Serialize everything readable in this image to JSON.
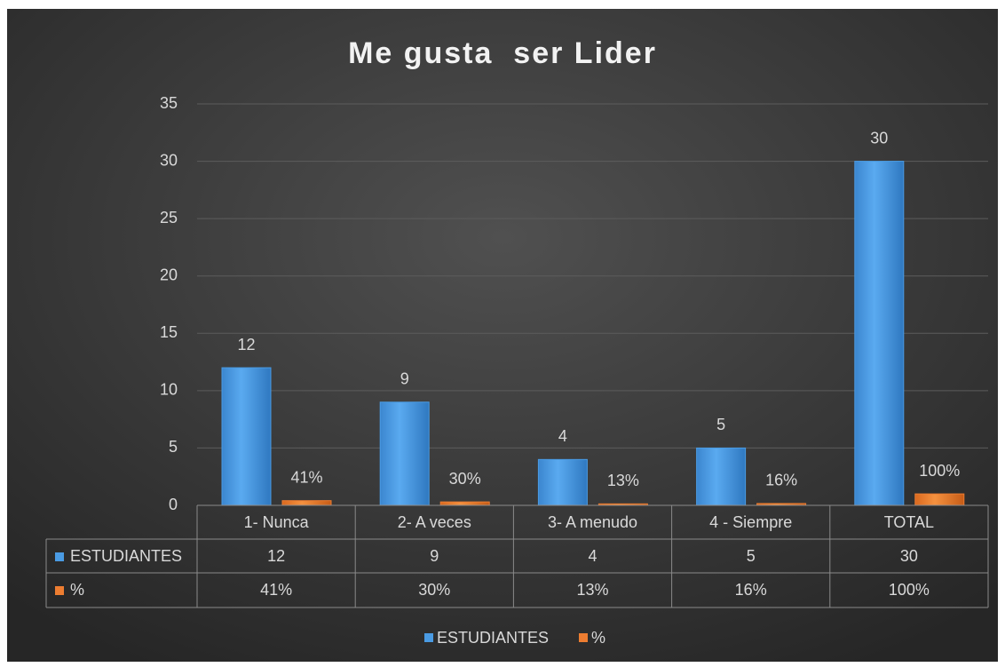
{
  "chart_data": {
    "type": "bar",
    "title": "Me gusta  ser Lider",
    "categories": [
      "1- Nunca",
      "2- A veces",
      "3- A menudo",
      "4 - Siempre",
      "TOTAL"
    ],
    "series": [
      {
        "name": "ESTUDIANTES",
        "color": "#4a9be3",
        "values": [
          12,
          9,
          4,
          5,
          30
        ]
      },
      {
        "name": "%",
        "color": "#ed7d31",
        "values": [
          0.41,
          0.3,
          0.13,
          0.16,
          1.0
        ],
        "value_labels": [
          "41%",
          "30%",
          "13%",
          "16%",
          "100%"
        ]
      }
    ],
    "ylim": [
      0,
      35
    ],
    "yticks": [
      0,
      5,
      10,
      15,
      20,
      25,
      30,
      35
    ],
    "grid": true,
    "legend": "bottom",
    "data_table": true
  }
}
